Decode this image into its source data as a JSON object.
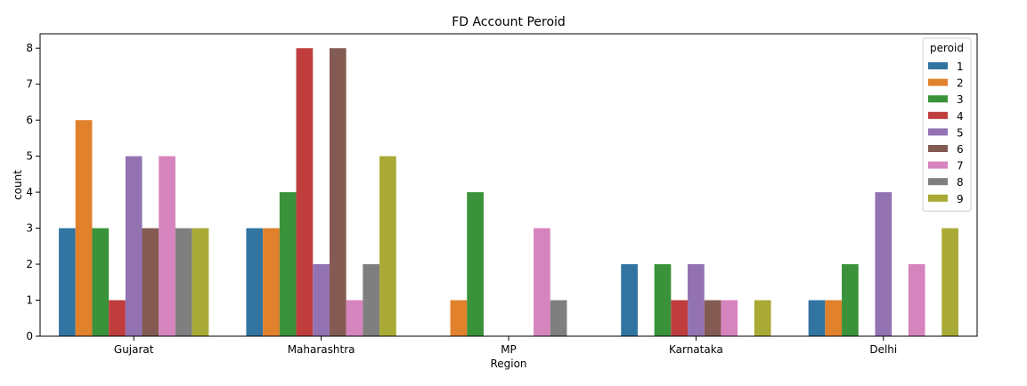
{
  "chart_data": {
    "type": "bar",
    "title": "FD Account Peroid",
    "xlabel": "Region",
    "ylabel": "count",
    "categories": [
      "Gujarat",
      "Maharashtra",
      "MP",
      "Karnataka",
      "Delhi"
    ],
    "ylim": [
      0,
      8.4
    ],
    "yticks": [
      0,
      1,
      2,
      3,
      4,
      5,
      6,
      7,
      8
    ],
    "grid": false,
    "legend": {
      "title": "peroid",
      "placement": "top-right"
    },
    "series": [
      {
        "name": "1",
        "color": "#3274a1",
        "values": [
          3,
          3,
          0,
          2,
          1
        ]
      },
      {
        "name": "2",
        "color": "#e1812c",
        "values": [
          6,
          3,
          1,
          0,
          1
        ]
      },
      {
        "name": "3",
        "color": "#3a923a",
        "values": [
          3,
          4,
          4,
          2,
          2
        ]
      },
      {
        "name": "4",
        "color": "#c03d3e",
        "values": [
          1,
          8,
          0,
          1,
          0
        ]
      },
      {
        "name": "5",
        "color": "#9372b2",
        "values": [
          5,
          2,
          0,
          2,
          4
        ]
      },
      {
        "name": "6",
        "color": "#845b53",
        "values": [
          3,
          8,
          0,
          1,
          0
        ]
      },
      {
        "name": "7",
        "color": "#d684bd",
        "values": [
          5,
          1,
          3,
          1,
          2
        ]
      },
      {
        "name": "8",
        "color": "#7f7f7f",
        "values": [
          3,
          2,
          1,
          0,
          0
        ]
      },
      {
        "name": "9",
        "color": "#a9aa35",
        "values": [
          3,
          5,
          0,
          1,
          3
        ]
      }
    ]
  }
}
